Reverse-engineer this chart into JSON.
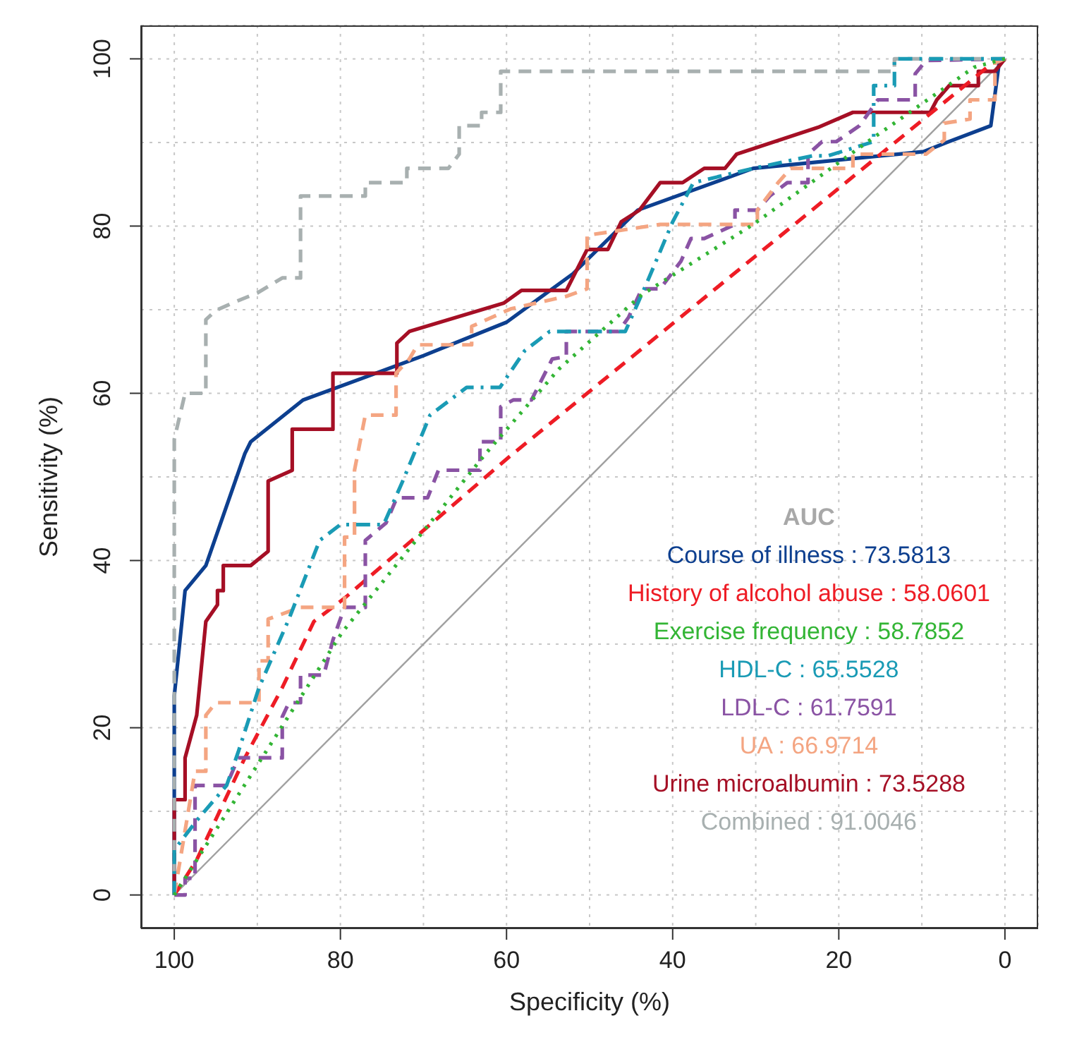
{
  "chart_data": {
    "type": "line",
    "xlabel": "Specificity (%)",
    "ylabel": "Sensitivity (%)",
    "legend_title": "AUC",
    "legend": "bottom right",
    "grid": true,
    "xlim": [
      104,
      -4
    ],
    "ylim": [
      -4,
      104
    ],
    "xticks": [
      100,
      {
        "value": 90,
        "label": null
      },
      80,
      {
        "value": 70,
        "label": null
      },
      60,
      {
        "value": 50,
        "label": null
      },
      40,
      {
        "value": 30,
        "label": null
      },
      20,
      {
        "value": 10,
        "label": null
      },
      0
    ],
    "yticks": [
      0,
      {
        "value": 10,
        "label": null
      },
      20,
      {
        "value": 30,
        "label": null
      },
      40,
      {
        "value": 50,
        "label": null
      },
      60,
      {
        "value": 70,
        "label": null
      },
      80,
      {
        "value": 90,
        "label": null
      },
      100
    ],
    "series": [
      {
        "color": "#a0a0a0",
        "line_style": "solid",
        "x": [
          100,
          0
        ],
        "values": [
          0,
          100
        ]
      },
      {
        "name": "Course of illness : 73.5813",
        "color": "#0d3f8f",
        "line_style": "solid",
        "x": [
          100,
          100,
          98.7,
          96.2,
          91.5,
          90.8,
          84.5,
          70,
          60,
          52,
          44.2,
          30.3,
          9.8,
          7,
          1.7,
          0.7,
          0
        ],
        "values": [
          0,
          23.8,
          36.4,
          39.4,
          52.8,
          54.2,
          59.2,
          64.5,
          68.5,
          74.3,
          81.9,
          86.9,
          88.9,
          90,
          92,
          99.5,
          100
        ]
      },
      {
        "name": "History of alcohol abuse : 58.0601",
        "color": "#ee1c25",
        "line_style": "dashed",
        "x": [
          100,
          97.3,
          91.5,
          87,
          83.2,
          79.5,
          59.8,
          1.5,
          0
        ],
        "values": [
          0,
          4.2,
          16.4,
          24.8,
          32.7,
          35.5,
          52.3,
          99.5,
          100
        ]
      },
      {
        "name": "Exercise frequency : 58.7852",
        "color": "#33b535",
        "line_style": "dotted",
        "x": [
          100,
          98.7,
          79.8,
          62.5,
          53.7,
          43.7,
          30.3,
          16.5,
          3.7,
          0
        ],
        "values": [
          0,
          2,
          31.4,
          52.8,
          62.9,
          71.8,
          80.2,
          90.1,
          99,
          100
        ]
      },
      {
        "name": "HDL-C : 65.5528",
        "color": "#1a9bb5",
        "line_style": "dashdot",
        "x": [
          100,
          100,
          97.3,
          93.7,
          92.3,
          89.8,
          86.2,
          82.5,
          80,
          74.8,
          72.5,
          69.2,
          64.8,
          60.8,
          57.8,
          54.8,
          45.7,
          43.2,
          40,
          37.5,
          30.3,
          23.2,
          21.3,
          15.8,
          15.8,
          13.3,
          13.3,
          0
        ],
        "values": [
          0,
          5.4,
          8.9,
          13.1,
          17.1,
          24.8,
          33,
          42.4,
          44.3,
          44.3,
          49.5,
          57.4,
          60.7,
          60.7,
          65.1,
          67.4,
          67.4,
          73,
          80.5,
          85.2,
          86.9,
          88.4,
          88.4,
          90.1,
          96.8,
          96.8,
          100,
          100
        ]
      },
      {
        "name": "LDL-C : 61.7591",
        "color": "#8a53a4",
        "line_style": "dashed",
        "x": [
          100,
          98.7,
          98.7,
          97.5,
          97.5,
          93.7,
          92.3,
          87,
          87,
          86.2,
          84.8,
          84.8,
          82,
          80.9,
          79.5,
          77,
          77,
          74.5,
          73.2,
          69.5,
          68.2,
          63.2,
          63.2,
          60.7,
          60.7,
          59.2,
          57,
          54.5,
          52.8,
          52.8,
          46.5,
          45.3,
          43.7,
          41.5,
          39,
          37.8,
          36.2,
          32.5,
          32.5,
          29.8,
          28.3,
          26.2,
          23.7,
          23.7,
          22,
          20.3,
          17.5,
          15.3,
          10.8,
          10.8,
          9.5,
          0
        ],
        "values": [
          0,
          0,
          2,
          2,
          13.1,
          13.1,
          16.4,
          16.4,
          21.3,
          23,
          23,
          26.3,
          26.3,
          30.5,
          34.4,
          34.4,
          42.4,
          44.5,
          47.5,
          47.5,
          50.8,
          50.8,
          54.2,
          54.2,
          58.4,
          59.2,
          59.2,
          64.1,
          64.4,
          67.4,
          67.4,
          69.1,
          72.5,
          72.5,
          75.8,
          78.5,
          78.5,
          80.2,
          81.9,
          81.9,
          83.6,
          85.2,
          85.2,
          88.6,
          90.1,
          90.1,
          92,
          95.1,
          95.1,
          98.2,
          99.8,
          100
        ]
      },
      {
        "name": "UA : 66.9714",
        "color": "#f4a582",
        "line_style": "dashed",
        "x": [
          100,
          97.5,
          96.2,
          96.2,
          95,
          89.8,
          89.8,
          88.7,
          88.7,
          84.8,
          79.5,
          79.5,
          78.3,
          78.3,
          77,
          73.3,
          73.3,
          71.7,
          70.7,
          64.2,
          64.2,
          59.5,
          52.8,
          50.3,
          50.3,
          41.5,
          29.8,
          29.8,
          27.3,
          25.8,
          18.3,
          18.3,
          9.5,
          7.3,
          7.3,
          4.2,
          4.2,
          1.2,
          1.2,
          0
        ],
        "values": [
          0,
          14.8,
          14.8,
          21.5,
          23,
          23,
          28,
          28,
          33,
          34.4,
          34.4,
          42.8,
          42.8,
          50.8,
          57.4,
          57.4,
          62.4,
          64.1,
          65.8,
          65.8,
          68,
          70.1,
          71.6,
          72.5,
          78.9,
          80.2,
          80.2,
          81.9,
          85.2,
          86.9,
          86.9,
          88.6,
          88.6,
          90.3,
          92.3,
          92.8,
          95.1,
          95.1,
          99.5,
          100
        ]
      },
      {
        "name": "Urine microalbumin : 73.5288",
        "color": "#a50f25",
        "line_style": "solid",
        "x": [
          100,
          100,
          98.7,
          98.7,
          97.3,
          96.2,
          94.8,
          94.8,
          94.1,
          94.1,
          90.8,
          88.7,
          88.7,
          85.8,
          85.8,
          80.9,
          80.9,
          73.2,
          73.2,
          71.7,
          60.3,
          58.2,
          52.8,
          50.3,
          47.8,
          46.2,
          44,
          41.5,
          38.8,
          36.2,
          33.7,
          32.3,
          22.5,
          18.3,
          9,
          8.2,
          6.7,
          3.2,
          3.2,
          1.2,
          0
        ],
        "values": [
          0,
          11.4,
          11.4,
          16.4,
          21.5,
          32.7,
          34.7,
          36.4,
          36.4,
          39.4,
          39.4,
          41.1,
          49.5,
          50.8,
          55.7,
          55.7,
          62.4,
          62.4,
          66,
          67.4,
          70.8,
          72.3,
          72.3,
          77.2,
          77.2,
          80.5,
          81.9,
          85.2,
          85.2,
          86.9,
          86.9,
          88.6,
          91.8,
          93.6,
          93.6,
          95.1,
          96.8,
          96.8,
          98.5,
          98.5,
          100
        ]
      },
      {
        "name": "Combined : 91.0046",
        "color": "#a8b0b0",
        "line_style": "dashed",
        "x": [
          100,
          100,
          98.7,
          96.2,
          96.2,
          95,
          93,
          90,
          87,
          84.8,
          84.8,
          77,
          77,
          72,
          72,
          67,
          65.7,
          65.7,
          63,
          63,
          60.7,
          60.7,
          13.3,
          13.3,
          0
        ],
        "values": [
          0,
          54.5,
          60,
          60,
          68.8,
          69.9,
          70.8,
          72,
          73.8,
          73.8,
          83.6,
          83.6,
          85.2,
          85.2,
          86.9,
          86.9,
          88.6,
          92,
          92,
          93.6,
          93.6,
          98.5,
          98.5,
          100,
          100
        ]
      }
    ]
  }
}
